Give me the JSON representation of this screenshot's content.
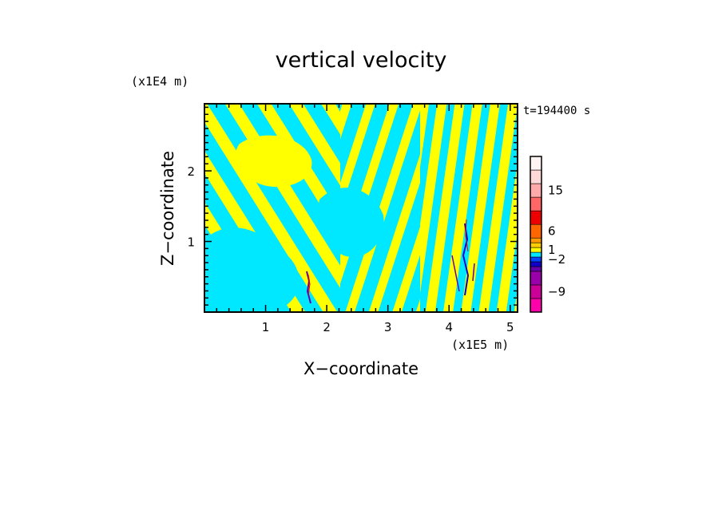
{
  "chart_data": {
    "type": "heatmap",
    "title": "vertical velocity",
    "xlabel": "X−coordinate",
    "ylabel": "Z−coordinate",
    "x_scale_label": "(x1E5 m)",
    "y_scale_label": "(x1E4 m)",
    "time_label": "t=194400  s",
    "xlim": [
      0,
      5.12
    ],
    "ylim": [
      0,
      2.95
    ],
    "x_ticks": [
      "1",
      "2",
      "3",
      "4",
      "5"
    ],
    "x_tick_values": [
      1,
      2,
      3,
      4,
      5
    ],
    "y_ticks": [
      "1",
      "2"
    ],
    "y_tick_values": [
      1,
      2
    ],
    "colorbar": {
      "levels": [
        {
          "color": "#ff00aa",
          "value": -12
        },
        {
          "color": "#cc0099",
          "value": -9
        },
        {
          "color": "#9900aa",
          "value": -6
        },
        {
          "color": "#6600aa",
          "value": -4
        },
        {
          "color": "#1100cc",
          "value": -3
        },
        {
          "color": "#0044ff",
          "value": -2
        },
        {
          "color": "#00e8ff",
          "value": -1
        },
        {
          "color": "#ffff00",
          "value": 1
        },
        {
          "color": "#ffcc00",
          "value": 2
        },
        {
          "color": "#ff9900",
          "value": 4
        },
        {
          "color": "#ff6600",
          "value": 6
        },
        {
          "color": "#ee0000",
          "value": 9
        },
        {
          "color": "#ff6666",
          "value": 12
        },
        {
          "color": "#ffaaaa",
          "value": 15
        },
        {
          "color": "#ffd8d8",
          "value": 18
        },
        {
          "color": "#fff4f4",
          "value": 21
        }
      ],
      "labels": [
        "15",
        "6",
        "1",
        "−2",
        "−9"
      ],
      "label_values": [
        15,
        6,
        1,
        -2,
        -9
      ]
    },
    "features": [
      {
        "x": 1.7,
        "z": 0.55,
        "note": "narrow strong updraft/downdraft"
      },
      {
        "x": 4.25,
        "z": 0.8,
        "note": "narrow strong updraft/downdraft"
      }
    ]
  }
}
